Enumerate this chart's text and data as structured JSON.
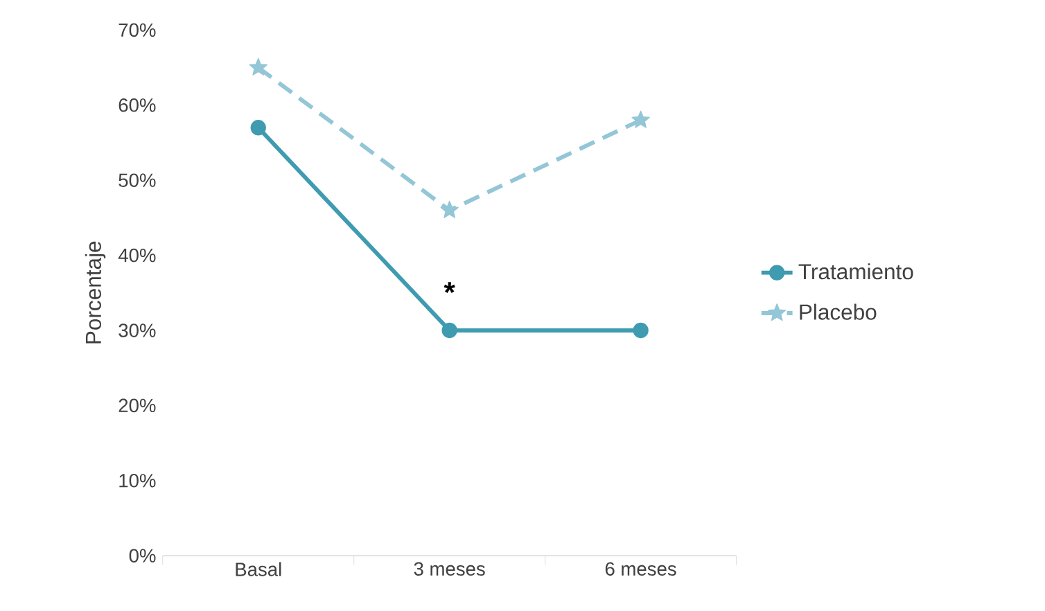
{
  "chart_data": {
    "type": "line",
    "ylabel": "Porcentaje",
    "categories": [
      "Basal",
      "3 meses",
      "6 meses"
    ],
    "series": [
      {
        "name": "Tratamiento",
        "color": "#3e9bb0",
        "values": [
          57,
          30,
          30
        ],
        "marker": "circle",
        "line_style": "solid"
      },
      {
        "name": "Placebo",
        "color": "#93c6d6",
        "values": [
          65,
          46,
          58
        ],
        "marker": "star",
        "line_style": "dashed"
      }
    ],
    "ylim": [
      0,
      70
    ],
    "yticks": [
      {
        "value": 0,
        "label": "0%"
      },
      {
        "value": 10,
        "label": "10%"
      },
      {
        "value": 20,
        "label": "20%"
      },
      {
        "value": 30,
        "label": "30%"
      },
      {
        "value": 40,
        "label": "40%"
      },
      {
        "value": 50,
        "label": "50%"
      },
      {
        "value": 60,
        "label": "60%"
      },
      {
        "value": 70,
        "label": "70%"
      }
    ],
    "grid": false,
    "legend": "right",
    "annotations": [
      "*"
    ]
  }
}
